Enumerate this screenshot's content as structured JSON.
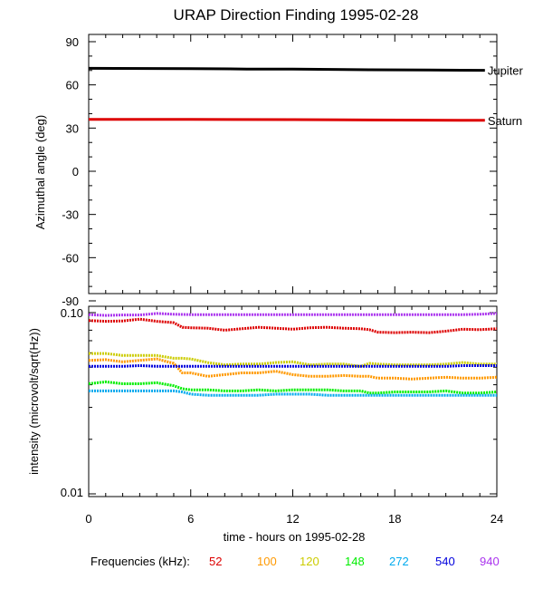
{
  "chart_data": [
    {
      "type": "line",
      "title": "URAP Direction Finding  1995-02-28",
      "ylabel": "Azimuthal angle (deg)",
      "xlabel": "",
      "xlim": [
        0,
        24
      ],
      "ylim": [
        -90,
        90
      ],
      "y_ticks": [
        90,
        60,
        30,
        0,
        -30,
        -60,
        -90
      ],
      "x_tick_labels_shown": false,
      "series": [
        {
          "name": "Jupiter",
          "color": "#000000",
          "x": [
            0,
            6,
            9.3,
            12,
            16.5,
            20,
            23.3
          ],
          "y": [
            71.5,
            71.3,
            71.0,
            70.9,
            70.5,
            70.3,
            70.1
          ]
        },
        {
          "name": "Saturn",
          "color": "#dd0000",
          "x": [
            0,
            6,
            12,
            16.5,
            20,
            23.3
          ],
          "y": [
            36.0,
            36.0,
            35.9,
            35.6,
            35.5,
            35.4
          ]
        }
      ]
    },
    {
      "type": "line",
      "title": "",
      "ylabel": "intensity (microvolt/sqrt(Hz))",
      "xlabel": "time - hours on 1995-02-28",
      "xlim": [
        0,
        24
      ],
      "ylim": [
        0.01,
        0.1
      ],
      "y_scale": "log",
      "y_tick_labels": [
        "0.10",
        "0.01"
      ],
      "x_ticks": [
        0,
        6,
        12,
        18,
        24
      ],
      "legend_title": "Frequencies (kHz):",
      "legend_placement": "bottom",
      "series": [
        {
          "name": "52",
          "color": "#dd0000",
          "x": [
            0,
            1,
            2,
            3,
            4,
            5,
            5.5,
            6,
            7,
            8,
            9,
            10,
            11,
            12,
            13,
            14,
            15,
            16,
            16.5,
            17,
            18,
            19,
            20,
            21,
            22,
            23,
            24
          ],
          "y": [
            0.0905,
            0.0895,
            0.09,
            0.092,
            0.0895,
            0.088,
            0.083,
            0.0825,
            0.082,
            0.08,
            0.0815,
            0.083,
            0.082,
            0.081,
            0.0825,
            0.083,
            0.082,
            0.0815,
            0.0805,
            0.078,
            0.0775,
            0.078,
            0.0775,
            0.079,
            0.081,
            0.0805,
            0.0815
          ]
        },
        {
          "name": "100",
          "color": "#ff9900",
          "x": [
            0,
            1,
            2,
            3,
            4,
            5,
            5.5,
            6,
            7,
            8,
            9,
            10,
            11,
            12,
            13,
            14,
            15,
            16,
            16.5,
            17,
            18,
            19,
            20,
            21,
            22,
            23,
            24
          ],
          "y": [
            0.0545,
            0.055,
            0.0535,
            0.0545,
            0.0555,
            0.0525,
            0.0465,
            0.0465,
            0.0445,
            0.0455,
            0.0465,
            0.0465,
            0.0475,
            0.0455,
            0.0445,
            0.0445,
            0.045,
            0.0445,
            0.0445,
            0.0435,
            0.0435,
            0.043,
            0.0435,
            0.044,
            0.0435,
            0.0435,
            0.044
          ]
        },
        {
          "name": "120",
          "color": "#cccc00",
          "x": [
            0,
            1,
            2,
            3,
            4,
            5,
            5.5,
            6,
            7,
            8,
            9,
            10,
            11,
            12,
            13,
            14,
            15,
            16,
            16.5,
            17,
            18,
            19,
            20,
            21,
            22,
            23,
            24
          ],
          "y": [
            0.0595,
            0.0595,
            0.058,
            0.058,
            0.058,
            0.056,
            0.056,
            0.0555,
            0.053,
            0.0515,
            0.052,
            0.052,
            0.053,
            0.0535,
            0.0515,
            0.052,
            0.052,
            0.0505,
            0.0525,
            0.052,
            0.0515,
            0.0515,
            0.0515,
            0.052,
            0.053,
            0.052,
            0.052
          ]
        },
        {
          "name": "148",
          "color": "#00ee00",
          "x": [
            0,
            1,
            2,
            3,
            4,
            5,
            5.5,
            6,
            7,
            8,
            9,
            10,
            11,
            12,
            13,
            14,
            15,
            16,
            16.5,
            17,
            18,
            19,
            20,
            21,
            22,
            23,
            24
          ],
          "y": [
            0.0405,
            0.0415,
            0.0405,
            0.0405,
            0.041,
            0.0395,
            0.038,
            0.0375,
            0.0375,
            0.037,
            0.037,
            0.0375,
            0.037,
            0.0375,
            0.0375,
            0.0375,
            0.037,
            0.037,
            0.036,
            0.036,
            0.0365,
            0.0365,
            0.0365,
            0.037,
            0.036,
            0.036,
            0.0365
          ]
        },
        {
          "name": "272",
          "color": "#00aaee",
          "x": [
            0,
            1,
            2,
            3,
            4,
            5,
            5.5,
            6,
            7,
            8,
            9,
            10,
            11,
            12,
            13,
            14,
            15,
            16,
            16.5,
            17,
            18,
            19,
            20,
            21,
            22,
            23,
            24
          ],
          "y": [
            0.037,
            0.037,
            0.037,
            0.037,
            0.037,
            0.037,
            0.0365,
            0.0355,
            0.035,
            0.035,
            0.035,
            0.035,
            0.0355,
            0.0355,
            0.0355,
            0.035,
            0.035,
            0.035,
            0.035,
            0.035,
            0.035,
            0.035,
            0.035,
            0.035,
            0.035,
            0.035,
            0.035
          ]
        },
        {
          "name": "540",
          "color": "#0000dd",
          "x": [
            0,
            1,
            2,
            3,
            4,
            5,
            6,
            7,
            8,
            9,
            10,
            11,
            12,
            13,
            14,
            15,
            16,
            17,
            18,
            19,
            20,
            21,
            22,
            23,
            24
          ],
          "y": [
            0.0505,
            0.0505,
            0.0505,
            0.051,
            0.0505,
            0.0505,
            0.0505,
            0.0505,
            0.0505,
            0.0505,
            0.0505,
            0.0505,
            0.0505,
            0.0505,
            0.0505,
            0.0505,
            0.0505,
            0.0505,
            0.0505,
            0.0505,
            0.0505,
            0.0505,
            0.051,
            0.051,
            0.051
          ]
        },
        {
          "name": "940",
          "color": "#aa33ee",
          "x": [
            0,
            1,
            2,
            3,
            4,
            5,
            6,
            7,
            8,
            9,
            10,
            11,
            12,
            13,
            14,
            15,
            16,
            17,
            18,
            19,
            20,
            21,
            22,
            23,
            24
          ],
          "y": [
            0.0975,
            0.0965,
            0.097,
            0.097,
            0.099,
            0.098,
            0.0975,
            0.0975,
            0.0975,
            0.0975,
            0.0975,
            0.0975,
            0.0975,
            0.0975,
            0.0975,
            0.0975,
            0.0975,
            0.0975,
            0.0975,
            0.0975,
            0.0975,
            0.0975,
            0.0975,
            0.098,
            0.099
          ]
        }
      ]
    }
  ]
}
